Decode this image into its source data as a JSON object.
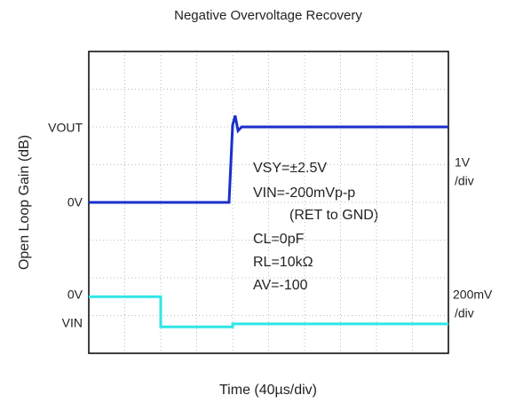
{
  "chart_data": {
    "type": "line",
    "title": "Negative Overvoltage Recovery",
    "x_label": "Time (40µs/div)",
    "y_label": "Open Loop Gain (dB)",
    "xlim": [
      0,
      10
    ],
    "ylim": [
      0,
      8
    ],
    "xticks": [
      0,
      1,
      2,
      3,
      4,
      5,
      6,
      7,
      8,
      9,
      10
    ],
    "yticks": [
      0,
      1,
      2,
      3,
      4,
      5,
      6,
      7,
      8
    ],
    "grid": true,
    "series": [
      {
        "name": "VOUT",
        "color": "#1a2fcc",
        "x": [
          0,
          3.9,
          4.0,
          4.07,
          4.15,
          4.25,
          10
        ],
        "values": [
          4.0,
          4.0,
          6.05,
          6.3,
          5.9,
          6.0,
          6.0
        ]
      },
      {
        "name": "VIN",
        "color": "#2ee6e6",
        "x": [
          0,
          2.0,
          2.0,
          4.0,
          4.0,
          10
        ],
        "values": [
          1.5,
          1.5,
          0.7,
          0.7,
          0.78,
          0.78
        ]
      }
    ],
    "level_labels": [
      "0V",
      "0V"
    ],
    "scale_labels": [
      [
        "1V",
        "/div"
      ],
      [
        "200mV",
        "/div"
      ]
    ],
    "annotations": [
      "VSY=±2.5V",
      "VIN=-200mVp-p",
      "(RET to GND)",
      "CL=0pF",
      "RL=10kΩ",
      "AV=-100"
    ]
  }
}
